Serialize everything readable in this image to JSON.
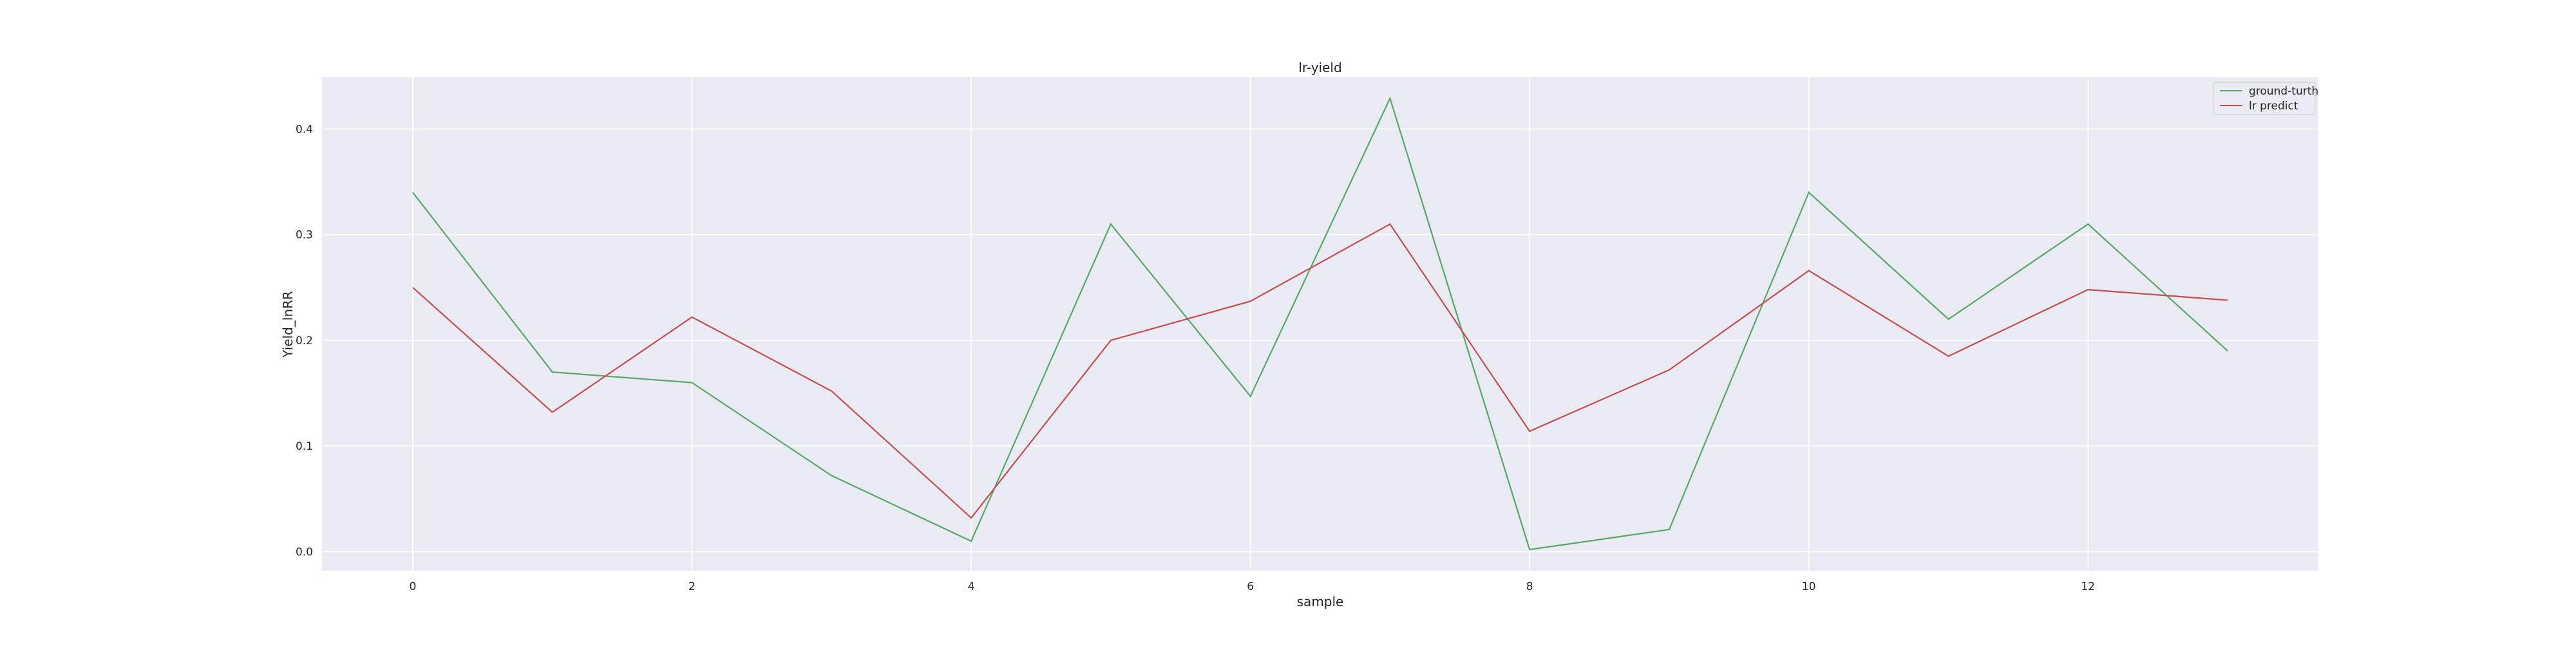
{
  "chart_data": {
    "type": "line",
    "title": "lr-yield",
    "xlabel": "sample",
    "ylabel": "Yield_lnRR",
    "x": [
      0,
      1,
      2,
      3,
      4,
      5,
      6,
      7,
      8,
      9,
      10,
      11,
      12,
      13
    ],
    "xlim": [
      -0.65,
      13.65
    ],
    "ylim": [
      -0.018,
      0.449
    ],
    "xticks": [
      0,
      2,
      4,
      6,
      8,
      10,
      12
    ],
    "yticks": [
      0.0,
      0.1,
      0.2,
      0.3,
      0.4
    ],
    "ytick_labels": [
      "0.0",
      "0.1",
      "0.2",
      "0.3",
      "0.4"
    ],
    "grid": true,
    "background": "#EAEAF2",
    "legend_position": "top-right",
    "series": [
      {
        "name": "ground-turth",
        "color": "#55A868",
        "values": [
          0.34,
          0.17,
          0.16,
          0.072,
          0.01,
          0.31,
          0.147,
          0.429,
          0.002,
          0.021,
          0.34,
          0.22,
          0.31,
          0.19
        ]
      },
      {
        "name": "lr predict",
        "color": "#C44E52",
        "values": [
          0.25,
          0.132,
          0.222,
          0.152,
          0.032,
          0.2,
          0.237,
          0.31,
          0.114,
          0.172,
          0.266,
          0.185,
          0.248,
          0.238
        ]
      }
    ]
  }
}
